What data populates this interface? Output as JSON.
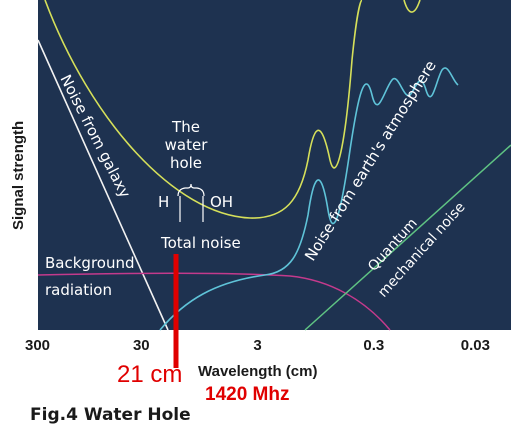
{
  "chart": {
    "ylabel": "Signal strength",
    "xlabel": "Wavelength (cm)",
    "caption": "Fig.4 Water Hole",
    "water_hole_line1": "The",
    "water_hole_line2": "water",
    "water_hole_line3": "hole",
    "h_label": "H",
    "oh_label": "OH",
    "marker_cm": "21 cm",
    "marker_mhz": "1420 Mhz"
  },
  "chart_data": {
    "type": "line",
    "x_scale": "log-reciprocal",
    "x_ticks": [
      "300",
      "30",
      "3",
      "0.3",
      "0.03"
    ],
    "x_tick_values": [
      300,
      30,
      3,
      0.3,
      0.03
    ],
    "series": [
      {
        "name": "Noise from galaxy",
        "color": "#ffffff"
      },
      {
        "name": "Total noise",
        "color": "#d6e05a"
      },
      {
        "name": "Noise from earth's atmosphere",
        "color": "#5fc3d8"
      },
      {
        "name": "Background radiation",
        "color": "#c43a8c"
      },
      {
        "name": "Quantum mechanical noise",
        "color": "#5fc383"
      }
    ],
    "marker": {
      "x": 21,
      "color": "#e00000"
    },
    "grid": false,
    "background": "#1e3250"
  }
}
